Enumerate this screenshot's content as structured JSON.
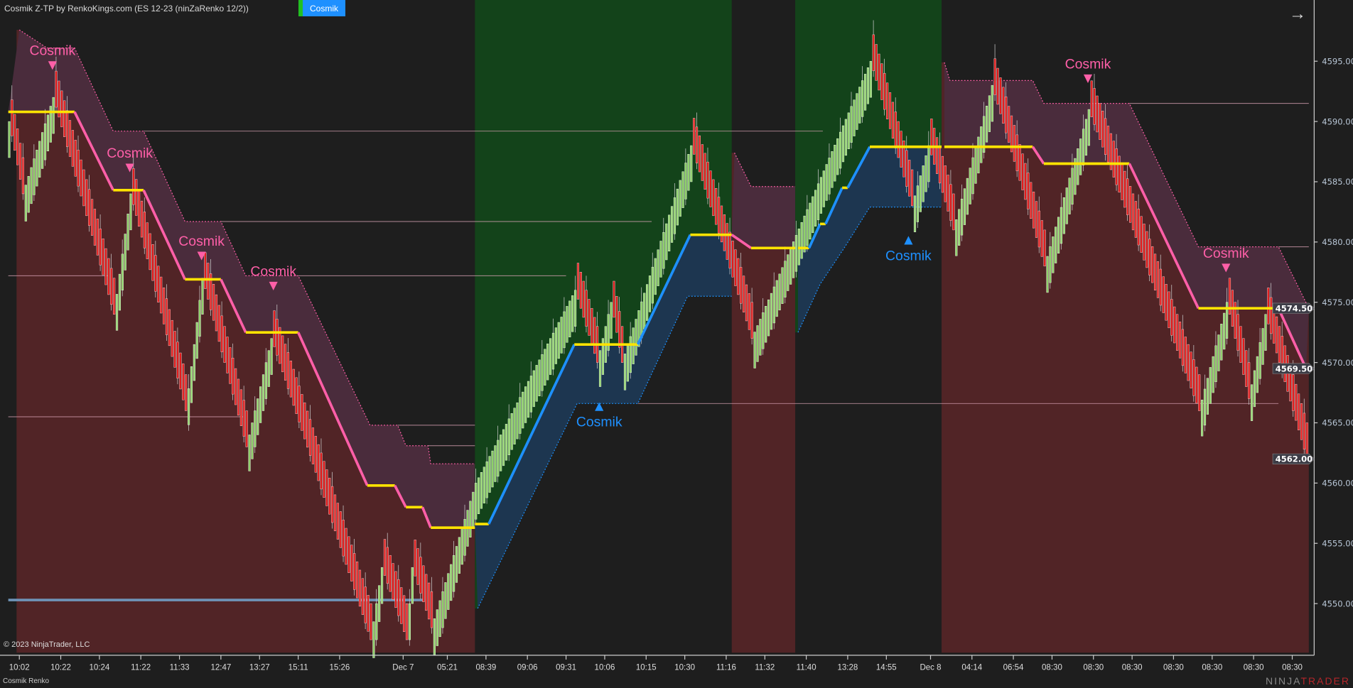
{
  "header": {
    "title": "Cosmik Z-TP by RenkoKings.com (ES 12-23 (ninZaRenko 12/2))",
    "button_label": "Cosmik"
  },
  "footer": {
    "copyright": "© 2023 NinjaTrader, LLC",
    "panel_label": "Cosmik Renko",
    "logo_prefix": "NINJA",
    "logo_suffix": "TRADER"
  },
  "colors": {
    "up_bar": "#8fd16a",
    "down_bar": "#e11b1b",
    "pink_stop": "#ff5fa8",
    "blue_stop": "#1e90ff",
    "flat_stop": "#ffe400",
    "red_zone": "#512426",
    "green_zone": "#13431a",
    "purple_band": "#4a2c3c",
    "blue_band": "#1d3650",
    "background": "#1e1e1e"
  },
  "chart_data": {
    "type": "renko",
    "y_ticks": [
      4595,
      4590,
      4585,
      4580,
      4575,
      4570,
      4565,
      4560,
      4555,
      4550
    ],
    "y_range": [
      4546.5,
      4598.5
    ],
    "price_markers": [
      "4574.50",
      "4569.50",
      "4562.00"
    ],
    "price_marker_values": [
      4574.5,
      4569.5,
      4562.0
    ],
    "x_ticks": [
      {
        "bar": 7,
        "label": "10:02"
      },
      {
        "bar": 22,
        "label": "10:22"
      },
      {
        "bar": 36,
        "label": "10:24"
      },
      {
        "bar": 51,
        "label": "11:22"
      },
      {
        "bar": 65,
        "label": "11:33"
      },
      {
        "bar": 80,
        "label": "12:47"
      },
      {
        "bar": 94,
        "label": "13:27"
      },
      {
        "bar": 108,
        "label": "15:11"
      },
      {
        "bar": 123,
        "label": "15:26"
      },
      {
        "bar": 146,
        "label": "Dec 7"
      },
      {
        "bar": 162,
        "label": "05:21"
      },
      {
        "bar": 176,
        "label": "08:39"
      },
      {
        "bar": 191,
        "label": "09:06"
      },
      {
        "bar": 205,
        "label": "09:31"
      },
      {
        "bar": 219,
        "label": "10:06"
      },
      {
        "bar": 234,
        "label": "10:15"
      },
      {
        "bar": 248,
        "label": "10:30"
      },
      {
        "bar": 263,
        "label": "11:16"
      },
      {
        "bar": 277,
        "label": "11:32"
      },
      {
        "bar": 292,
        "label": "11:40"
      },
      {
        "bar": 307,
        "label": "13:28"
      },
      {
        "bar": 321,
        "label": "14:55"
      },
      {
        "bar": 337,
        "label": "Dec 8"
      },
      {
        "bar": 352,
        "label": "04:14"
      },
      {
        "bar": 367,
        "label": "06:54"
      },
      {
        "bar": 381,
        "label": "08:30"
      },
      {
        "bar": 396,
        "label": "08:30"
      },
      {
        "bar": 410,
        "label": "08:30"
      },
      {
        "bar": 425,
        "label": "08:30"
      },
      {
        "bar": 439,
        "label": "08:30"
      },
      {
        "bar": 454,
        "label": "08:30"
      },
      {
        "bar": 468,
        "label": "08:30"
      }
    ],
    "price_path": [
      [
        3,
        4590
      ],
      [
        8,
        4584
      ],
      [
        19,
        4592
      ],
      [
        41,
        4574
      ],
      [
        47,
        4584
      ],
      [
        67,
        4566
      ],
      [
        73,
        4577
      ],
      [
        89,
        4563
      ],
      [
        98,
        4572
      ],
      [
        134,
        4547
      ],
      [
        138,
        4553
      ],
      [
        147,
        4547
      ],
      [
        149,
        4553
      ],
      [
        156,
        4548
      ],
      [
        172,
        4560
      ],
      [
        208,
        4576
      ],
      [
        216,
        4570
      ],
      [
        221,
        4575
      ],
      [
        225,
        4570
      ],
      [
        250,
        4588
      ],
      [
        272,
        4572
      ],
      [
        315,
        4595
      ],
      [
        330,
        4583
      ],
      [
        336,
        4588
      ],
      [
        345,
        4581
      ],
      [
        359,
        4593
      ],
      [
        378,
        4578
      ],
      [
        394,
        4591
      ],
      [
        434,
        4566
      ],
      [
        444,
        4575
      ],
      [
        452,
        4567
      ],
      [
        458,
        4574
      ],
      [
        473,
        4562
      ]
    ],
    "zones": [
      {
        "trend": "down",
        "from": 6,
        "to": 172,
        "stop": [
          [
            3,
            4590.8
          ],
          [
            27,
            4590.8
          ],
          [
            41,
            4584.3
          ],
          [
            52,
            4584.3
          ],
          [
            67,
            4576.9
          ],
          [
            80,
            4576.9
          ],
          [
            89,
            4572.5
          ],
          [
            108,
            4572.5
          ],
          [
            133,
            4559.8
          ],
          [
            143,
            4559.8
          ],
          [
            147,
            4558.0
          ],
          [
            153,
            4558.0
          ],
          [
            156,
            4556.3
          ],
          [
            172,
            4556.3
          ]
        ],
        "band": [
          [
            7,
            4597.6
          ],
          [
            17,
            4596.1
          ],
          [
            27,
            4596.1
          ],
          [
            41,
            4589.2
          ],
          [
            52,
            4589.2
          ],
          [
            67,
            4581.7
          ],
          [
            80,
            4581.7
          ],
          [
            89,
            4577.2
          ],
          [
            108,
            4577.2
          ],
          [
            134,
            4564.8
          ],
          [
            144,
            4564.8
          ],
          [
            147,
            4563.1
          ],
          [
            155,
            4563.1
          ],
          [
            156,
            4561.6
          ],
          [
            172,
            4561.6
          ]
        ]
      },
      {
        "trend": "up",
        "from": 172,
        "to": 265,
        "stop": [
          [
            172,
            4556.6
          ],
          [
            177,
            4556.6
          ],
          [
            208,
            4571.5
          ],
          [
            231,
            4571.5
          ],
          [
            250,
            4580.6
          ],
          [
            265,
            4580.6
          ]
        ],
        "band": [
          [
            173,
            4549.6
          ],
          [
            209,
            4566.6
          ],
          [
            231,
            4566.6
          ],
          [
            249,
            4575.5
          ],
          [
            265,
            4575.5
          ]
        ]
      },
      {
        "trend": "down",
        "from": 265,
        "to": 288,
        "stop": [
          [
            265,
            4580.6
          ],
          [
            272,
            4579.5
          ],
          [
            288,
            4579.5
          ]
        ],
        "band": [
          [
            266,
            4587.4
          ],
          [
            272,
            4584.6
          ],
          [
            288,
            4584.6
          ]
        ]
      },
      {
        "trend": "up",
        "from": 288,
        "to": 341,
        "stop": [
          [
            289,
            4579.5
          ],
          [
            293,
            4579.5
          ],
          [
            297,
            4581.5
          ],
          [
            299,
            4581.5
          ],
          [
            305,
            4584.5
          ],
          [
            307,
            4584.5
          ],
          [
            315,
            4587.9
          ],
          [
            341,
            4587.9
          ]
        ],
        "band": [
          [
            289,
            4572.5
          ],
          [
            297,
            4576.5
          ],
          [
            306,
            4579.6
          ],
          [
            315,
            4582.9
          ],
          [
            341,
            4582.9
          ]
        ]
      },
      {
        "trend": "down",
        "from": 341,
        "to": 474,
        "stop": [
          [
            342,
            4587.9
          ],
          [
            374,
            4587.9
          ],
          [
            378,
            4586.5
          ],
          [
            409,
            4586.5
          ],
          [
            434,
            4574.5
          ],
          [
            463,
            4574.5
          ],
          [
            473,
            4569.5
          ]
        ],
        "band": [
          [
            342,
            4594.9
          ],
          [
            344,
            4593.4
          ],
          [
            374,
            4593.4
          ],
          [
            378,
            4591.5
          ],
          [
            409,
            4591.5
          ],
          [
            434,
            4579.6
          ],
          [
            463,
            4579.6
          ],
          [
            474,
            4574.5
          ]
        ]
      }
    ],
    "levels": [
      [
        52,
        298,
        4589.2
      ],
      [
        80,
        236,
        4581.7
      ],
      [
        3,
        39,
        4577.2
      ],
      [
        108,
        205,
        4577.2
      ],
      [
        3,
        88,
        4565.5
      ],
      [
        144,
        172,
        4564.8
      ],
      [
        155,
        172,
        4563.1
      ],
      [
        231,
        463,
        4566.6
      ],
      [
        409,
        474,
        4591.5
      ],
      [
        463,
        474,
        4579.6
      ]
    ],
    "support_level": [
      3,
      153,
      4550.3
    ],
    "signals": [
      {
        "label": "Cosmik",
        "direction": "down",
        "bar": 19,
        "price": 4595.5
      },
      {
        "label": "Cosmik",
        "direction": "down",
        "bar": 47,
        "price": 4587
      },
      {
        "label": "Cosmik",
        "direction": "down",
        "bar": 73,
        "price": 4579.7
      },
      {
        "label": "Cosmik",
        "direction": "down",
        "bar": 99,
        "price": 4577.2
      },
      {
        "label": "Cosmik",
        "direction": "down",
        "bar": 394,
        "price": 4594.4
      },
      {
        "label": "Cosmik",
        "direction": "down",
        "bar": 444,
        "price": 4578.7
      },
      {
        "label": "Cosmik",
        "direction": "up",
        "bar": 217,
        "price": 4564.7
      },
      {
        "label": "Cosmik",
        "direction": "up",
        "bar": 329,
        "price": 4578.5
      }
    ]
  }
}
